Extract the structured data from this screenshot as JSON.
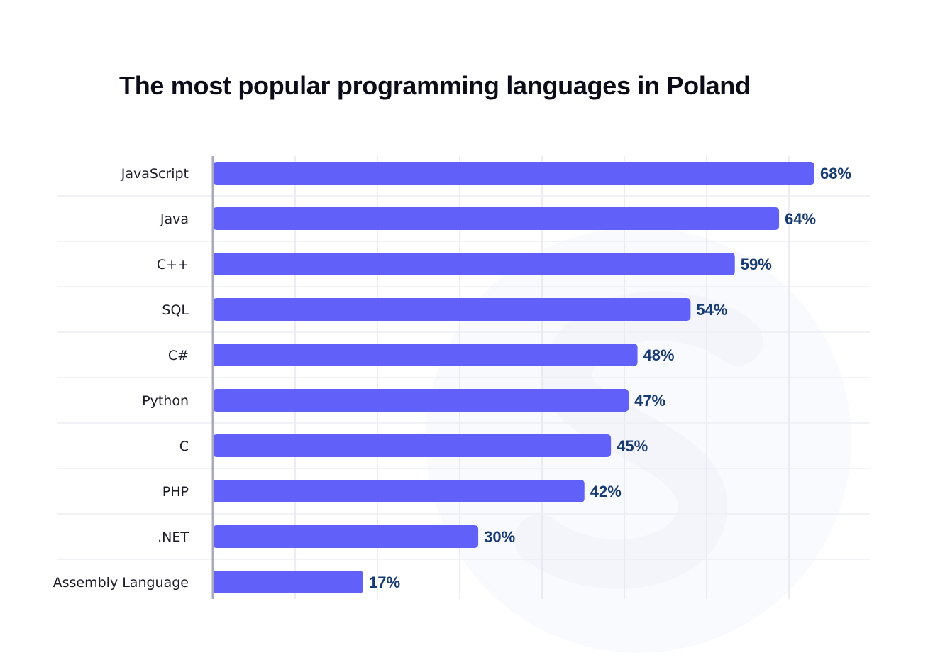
{
  "chart_data": {
    "type": "bar",
    "orientation": "horizontal",
    "title": "The most popular programming languages in Poland",
    "categories": [
      "JavaScript",
      "Java",
      "C++",
      "SQL",
      "C#",
      "Python",
      "C",
      "PHP",
      ".NET",
      "Assembly Language"
    ],
    "values": [
      68,
      64,
      59,
      54,
      48,
      47,
      45,
      42,
      30,
      17
    ],
    "value_labels": [
      "68%",
      "64%",
      "59%",
      "54%",
      "48%",
      "47%",
      "45%",
      "42%",
      "30%",
      "17%"
    ],
    "unit": "%",
    "xlim": [
      0,
      75
    ],
    "grid": true,
    "xlabel": "",
    "ylabel": "",
    "bar_color": "#6161fa",
    "label_color": "#163a73",
    "grid_color": "#e5e5ee",
    "axis_color": "#a9a9bd"
  }
}
